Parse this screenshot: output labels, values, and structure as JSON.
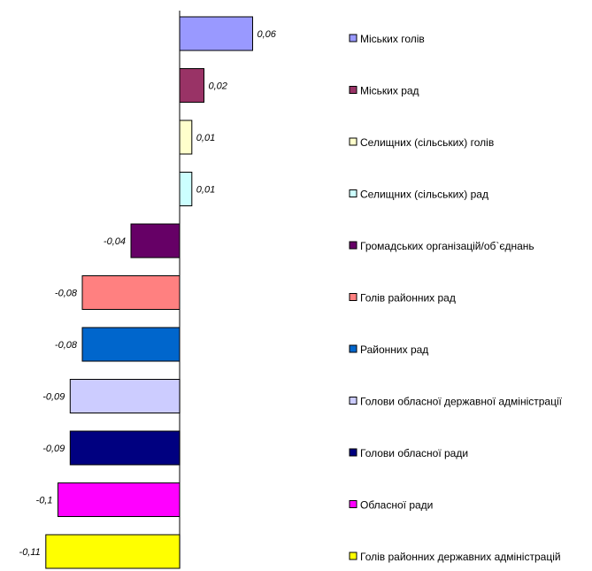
{
  "chart_data": {
    "type": "bar",
    "orientation": "horizontal",
    "categories": [
      "Міських голів",
      "Міських рад",
      "Селищних (сільських) голів",
      "Селищних (сільських) рад",
      "Громадських організацій/об`єднань",
      "Голів районних рад",
      "Районних рад",
      "Голови обласної державної адміністрації",
      "Голови обласної ради",
      "Обласної ради",
      "Голів районних державних адміністрацій"
    ],
    "values": [
      0.06,
      0.02,
      0.01,
      0.01,
      -0.04,
      -0.08,
      -0.08,
      -0.09,
      -0.09,
      -0.1,
      -0.11
    ],
    "value_labels": [
      "0,06",
      "0,02",
      "0,01",
      "0,01",
      "-0,04",
      "-0,08",
      "-0,08",
      "-0,09",
      "-0,09",
      "-0,1",
      "-0,11"
    ],
    "colors": [
      "#9999ff",
      "#993366",
      "#ffffcc",
      "#ccffff",
      "#660066",
      "#ff8080",
      "#0066cc",
      "#ccccff",
      "#000080",
      "#ff00ff",
      "#ffff00"
    ],
    "legend_position": "right",
    "grid": false,
    "title": "",
    "xlabel": "",
    "ylabel": ""
  }
}
